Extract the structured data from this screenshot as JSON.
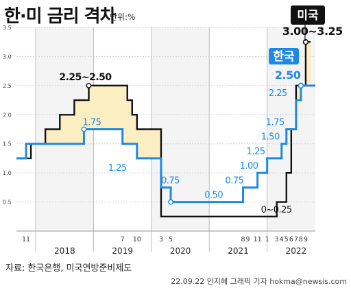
{
  "title": "한·미 금리 격차",
  "unit_label": "단위:%",
  "source": "자료: 한국은행, 미국연방준비제도",
  "credit": "22.09.22 안지혜 그래픽 기자 hokma@newsis.com",
  "chart_data": {
    "type": "line",
    "title": "한·미 금리 격차",
    "unit": "%",
    "x_range": [
      "2017-09",
      "2022-11"
    ],
    "ylim": [
      0,
      3.5
    ],
    "y_ticks": [
      "0.5",
      "1.0",
      "1.5",
      "2.0",
      "2.5",
      "3.0",
      "3.5"
    ],
    "grid": true,
    "year_labels": [
      {
        "year": "2018",
        "center": "2018-07"
      },
      {
        "year": "2019",
        "center": "2019-07"
      },
      {
        "year": "2020",
        "center": "2020-07"
      },
      {
        "year": "2021",
        "center": "2021-07"
      },
      {
        "year": "2022",
        "center": "2022-07"
      }
    ],
    "month_ticks": [
      {
        "label": "11",
        "date": "2017-11"
      },
      {
        "label": "7",
        "date": "2019-07"
      },
      {
        "label": "10",
        "date": "2019-10"
      },
      {
        "label": "3",
        "date": "2020-03"
      },
      {
        "label": "5",
        "date": "2020-05"
      },
      {
        "label": "8",
        "date": "2021-08"
      },
      {
        "label": "9",
        "date": "2021-09"
      },
      {
        "label": "11",
        "date": "2021-11"
      },
      {
        "label": "1",
        "date": "2022-01"
      },
      {
        "label": "3",
        "date": "2022-03"
      },
      {
        "label": "4",
        "date": "2022-04"
      },
      {
        "label": "5",
        "date": "2022-05"
      },
      {
        "label": "6",
        "date": "2022-06"
      },
      {
        "label": "7",
        "date": "2022-07"
      },
      {
        "label": "8",
        "date": "2022-08"
      },
      {
        "label": "9",
        "date": "2022-09"
      }
    ],
    "series": [
      {
        "name": "한국",
        "color": "#1e88e5",
        "steps": [
          [
            "2017-09",
            1.25
          ],
          [
            "2017-11",
            1.5
          ],
          [
            "2018-11",
            1.75
          ],
          [
            "2019-07",
            1.5
          ],
          [
            "2019-10",
            1.25
          ],
          [
            "2020-03",
            0.75
          ],
          [
            "2020-05",
            0.5
          ],
          [
            "2021-08",
            0.75
          ],
          [
            "2021-11",
            1.0
          ],
          [
            "2022-01",
            1.25
          ],
          [
            "2022-04",
            1.5
          ],
          [
            "2022-05",
            1.75
          ],
          [
            "2022-07",
            2.25
          ],
          [
            "2022-08",
            2.5
          ]
        ],
        "end": "2022-11"
      },
      {
        "name": "미국",
        "color": "#111111",
        "steps": [
          [
            "2017-09",
            1.25
          ],
          [
            "2017-12",
            1.5
          ],
          [
            "2018-03",
            1.75
          ],
          [
            "2018-06",
            2.0
          ],
          [
            "2018-09",
            2.25
          ],
          [
            "2018-12",
            2.5
          ],
          [
            "2019-08",
            2.25
          ],
          [
            "2019-09",
            2.0
          ],
          [
            "2019-10",
            1.75
          ],
          [
            "2020-03",
            0.25
          ],
          [
            "2022-03",
            0.5
          ],
          [
            "2022-05",
            1.0
          ],
          [
            "2022-06",
            1.75
          ],
          [
            "2022-07",
            2.5
          ],
          [
            "2022-09",
            3.25
          ]
        ],
        "end": "2022-10"
      }
    ],
    "annotations": [
      {
        "text": "2.25~2.50",
        "series": "미국",
        "date": "2019-01",
        "value": 2.5
      },
      {
        "text": "1.75",
        "series": "한국",
        "date": "2018-11",
        "value": 1.75
      },
      {
        "text": "1.25",
        "series": "한국",
        "date": "2019-10",
        "value": 1.25
      },
      {
        "text": "0.75",
        "series": "한국",
        "date": "2020-03",
        "value": 0.75
      },
      {
        "text": "0.50",
        "series": "한국",
        "date": "2020-12",
        "value": 0.5
      },
      {
        "text": "0~0.25",
        "series": "미국",
        "date": "2021-10",
        "value": 0.25
      },
      {
        "text": "0.75",
        "series": "한국",
        "date": "2021-08",
        "value": 0.75
      },
      {
        "text": "1.00",
        "series": "한국",
        "date": "2021-11",
        "value": 1.0
      },
      {
        "text": "1.25",
        "series": "한국",
        "date": "2022-01",
        "value": 1.25
      },
      {
        "text": "1.50",
        "series": "한국",
        "date": "2022-04",
        "value": 1.5
      },
      {
        "text": "1.75",
        "series": "한국",
        "date": "2022-05",
        "value": 1.75
      },
      {
        "text": "2.25",
        "series": "한국",
        "date": "2022-07",
        "value": 2.25
      },
      {
        "text": "2.50",
        "series": "한국",
        "date": "2022-08",
        "value": 2.5
      },
      {
        "text": "3.00~3.25",
        "series": "미국",
        "date": "2022-09",
        "value": 3.25
      }
    ],
    "series_tags": [
      {
        "series": "한국",
        "text": "한국",
        "color": "#1e88e5"
      },
      {
        "series": "미국",
        "text": "미국",
        "color": "#111111"
      }
    ],
    "gap_fill_color": "#fbeec2"
  }
}
